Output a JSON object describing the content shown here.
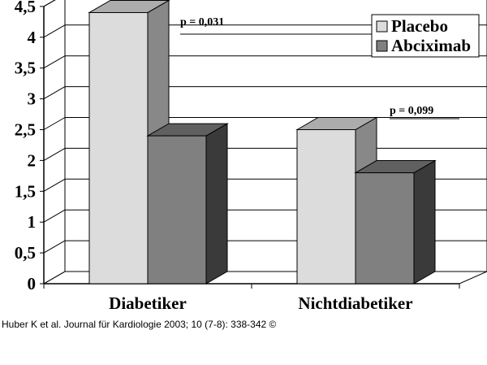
{
  "chart_data": {
    "type": "bar",
    "style": "3d-clustered",
    "categories": [
      "Diabetiker",
      "Nichtdiabetiker"
    ],
    "series": [
      {
        "name": "Placebo",
        "values": [
          4.4,
          2.5
        ],
        "color": "#dcdcdc"
      },
      {
        "name": "Abciximab",
        "values": [
          2.4,
          1.8
        ],
        "color": "#808080"
      }
    ],
    "yticks": [
      "0",
      "0,5",
      "1",
      "1,5",
      "2",
      "2,5",
      "3",
      "3,5",
      "4",
      "4,5"
    ],
    "ylim": [
      0,
      4.5
    ],
    "grid": true,
    "legend_position": "top-right",
    "annotations": [
      {
        "text": "p = 0,031",
        "category": "Diabetiker"
      },
      {
        "text": "p = 0,099",
        "category": "Nichtdiabetiker"
      }
    ]
  },
  "citation": "Huber K et al. Journal für Kardiologie 2003; 10 (7-8): 338-342 ©"
}
